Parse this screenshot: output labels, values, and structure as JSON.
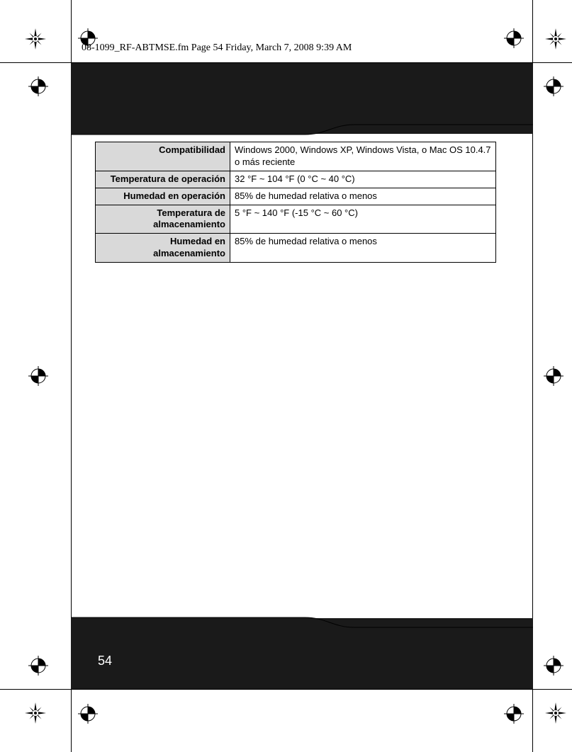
{
  "header": {
    "text": "08-1099_RF-ABTMSE.fm  Page 54  Friday, March 7, 2008  9:39 AM"
  },
  "page_number": "54",
  "table": {
    "rows": [
      {
        "label": "Compatibilidad",
        "value": "Windows 2000, Windows XP, Windows Vista, o Mac OS 10.4.7 o más reciente"
      },
      {
        "label": "Temperatura de operación",
        "value": "32 °F ~ 104 °F (0 °C ~ 40 °C)"
      },
      {
        "label": "Humedad en operación",
        "value": "85% de humedad relativa o menos"
      },
      {
        "label": "Temperatura de almacenamiento",
        "value": "5 °F ~ 140 °F (-15 °C ~ 60 °C)"
      },
      {
        "label": "Humedad en almacenamiento",
        "value": "85% de humedad relativa o menos"
      }
    ]
  },
  "colors": {
    "band": "#1a1a1a",
    "label_bg": "#d9d9d9",
    "text": "#000000",
    "page_num": "#ffffff"
  }
}
